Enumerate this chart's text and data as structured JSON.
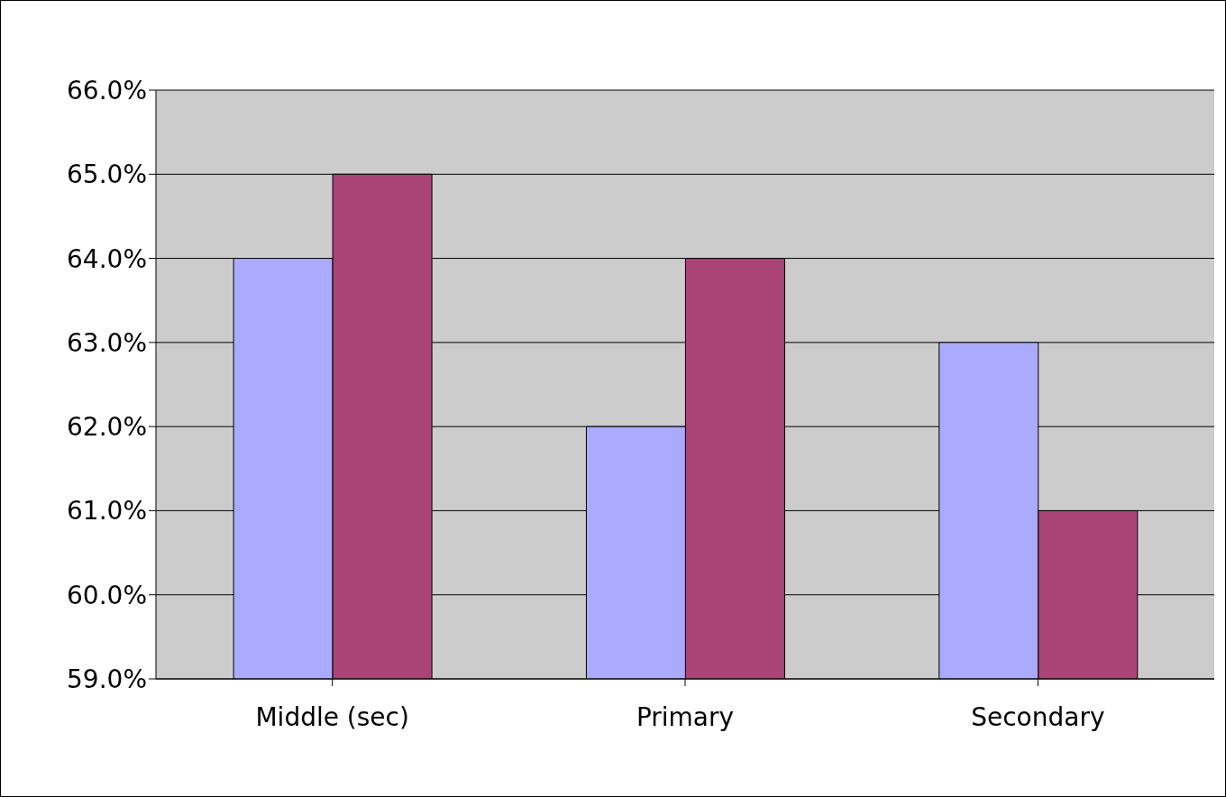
{
  "chart_data": {
    "type": "bar",
    "categories": [
      "Middle (sec)",
      "Primary",
      "Secondary"
    ],
    "series": [
      {
        "color": "#aaaaff",
        "values": [
          64,
          62,
          63
        ]
      },
      {
        "color": "#aa4477",
        "values": [
          65,
          64,
          61
        ]
      }
    ],
    "ylim": [
      59,
      66
    ],
    "yticks": [
      {
        "value": 59,
        "label": "59.0%"
      },
      {
        "value": 60,
        "label": "60.0%"
      },
      {
        "value": 61,
        "label": "61.0%"
      },
      {
        "value": 62,
        "label": "62.0%"
      },
      {
        "value": 63,
        "label": "63.0%"
      },
      {
        "value": 64,
        "label": "64.0%"
      },
      {
        "value": 65,
        "label": "65.0%"
      },
      {
        "value": 66,
        "label": "66.0%"
      }
    ],
    "grid": "y",
    "legend": false
  }
}
